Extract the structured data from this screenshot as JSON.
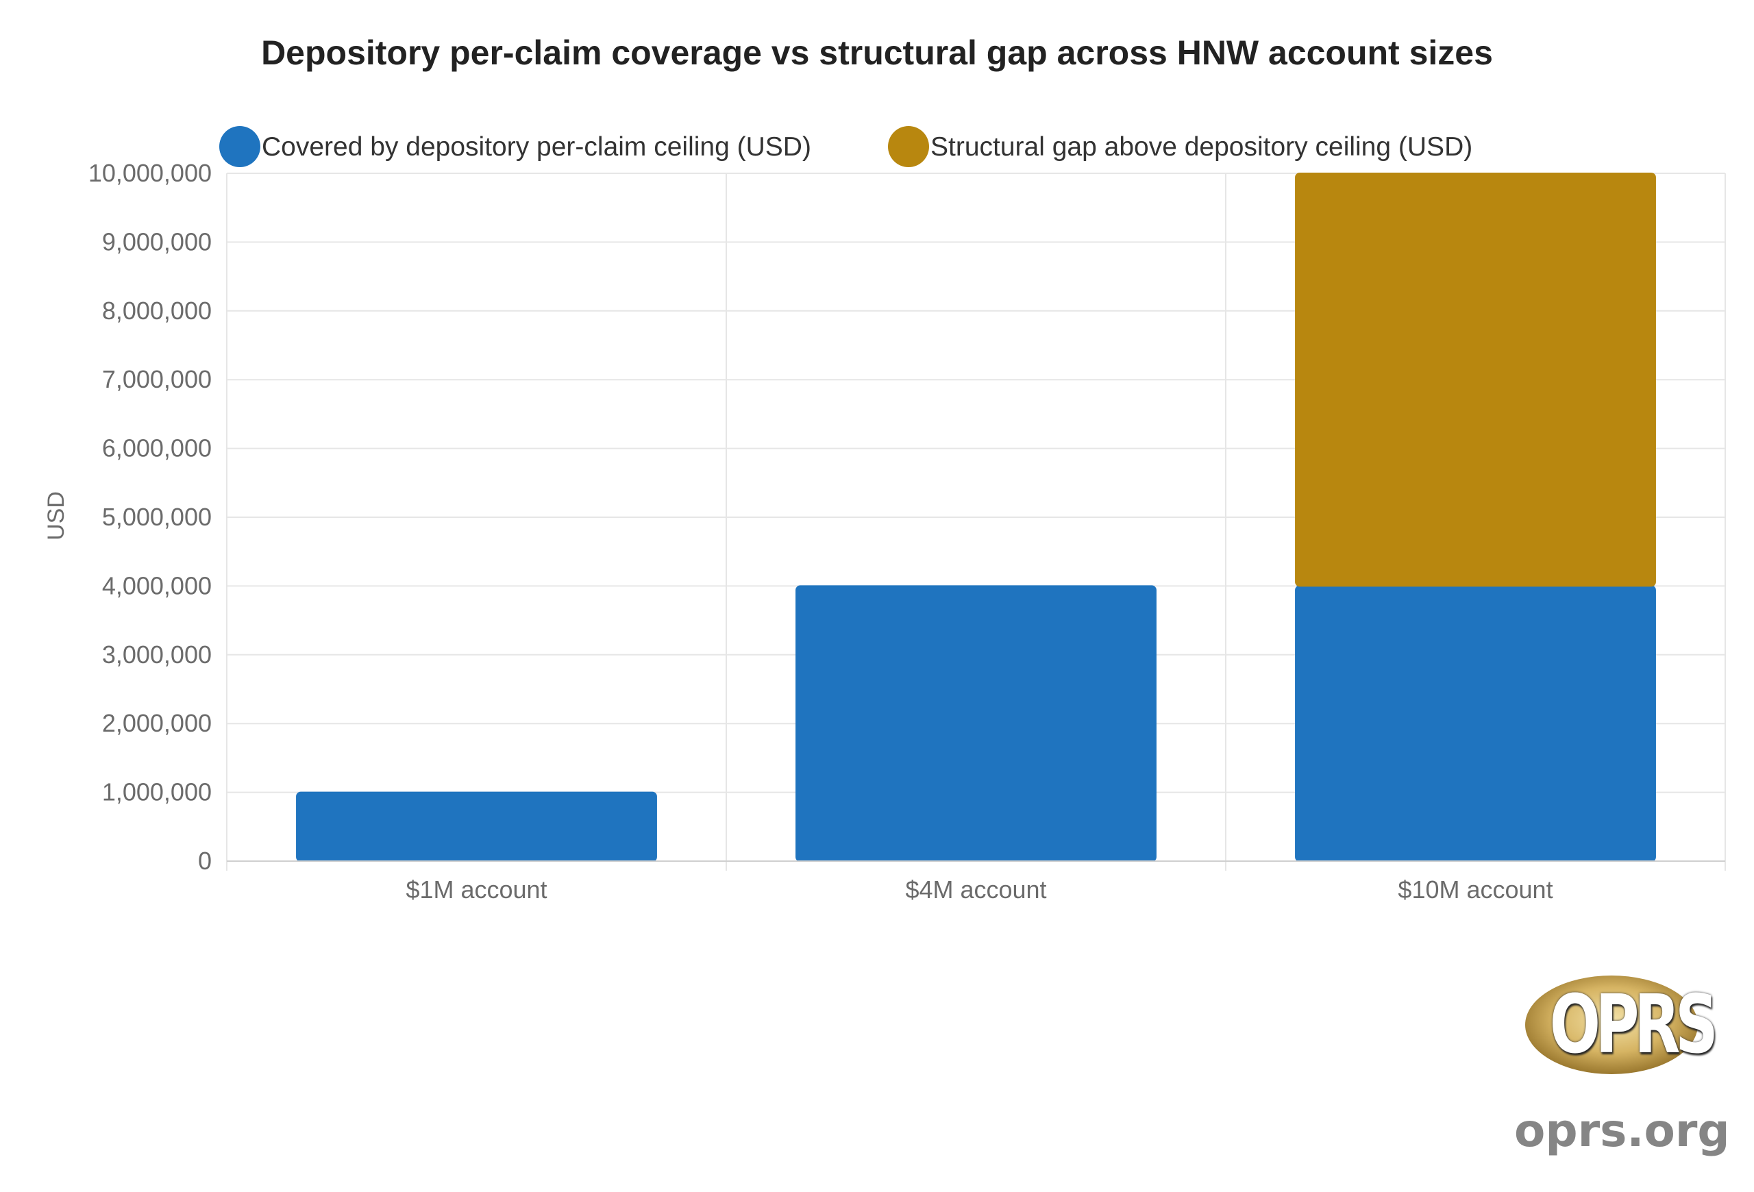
{
  "chart_data": {
    "type": "bar",
    "stacked": true,
    "title": "Depository per-claim coverage vs structural gap across HNW account sizes",
    "xlabel": "",
    "ylabel": "USD",
    "categories": [
      "$1M account",
      "$4M account",
      "$10M account"
    ],
    "series": [
      {
        "name": "Covered by depository per-claim ceiling (USD)",
        "values": [
          1000000,
          4000000,
          4000000
        ],
        "color": "#1f74bf"
      },
      {
        "name": "Structural gap above depository ceiling (USD)",
        "values": [
          0,
          0,
          6000000
        ],
        "color": "#b8870f"
      }
    ],
    "ylim": [
      0,
      10000000
    ],
    "yticks": [
      "0",
      "1,000,000",
      "2,000,000",
      "3,000,000",
      "4,000,000",
      "5,000,000",
      "6,000,000",
      "7,000,000",
      "8,000,000",
      "9,000,000",
      "10,000,000"
    ],
    "grid": true,
    "legend_position": "top"
  },
  "logo": {
    "text": "OPRS",
    "domain": "oprs.org"
  }
}
